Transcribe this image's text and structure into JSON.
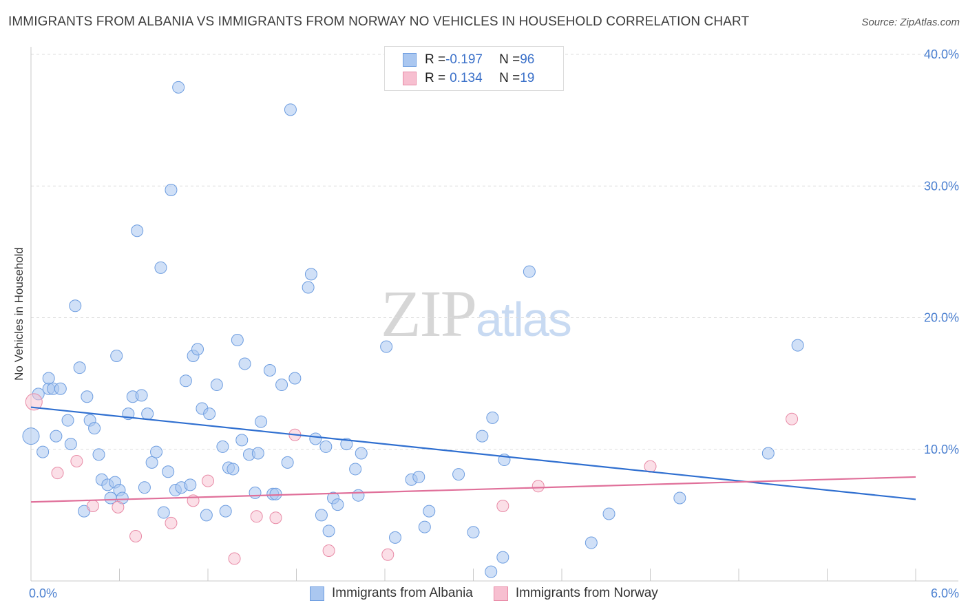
{
  "title": "IMMIGRANTS FROM ALBANIA VS IMMIGRANTS FROM NORWAY NO VEHICLES IN HOUSEHOLD CORRELATION CHART",
  "source": "Source: ZipAtlas.com",
  "watermark": {
    "part1": "ZIP",
    "part2": "atlas"
  },
  "legend": {
    "albania": {
      "r_label": "R = ",
      "r_value": "-0.197",
      "n_label": "N = ",
      "n_value": "96",
      "color": "#aac7f0",
      "border": "#6d9de0"
    },
    "norway": {
      "r_label": "R = ",
      "r_value": "0.134",
      "n_label": "N = ",
      "n_value": "19",
      "color": "#f7bfd0",
      "border": "#e88aa6"
    }
  },
  "chart_data": {
    "type": "scatter",
    "title": "IMMIGRANTS FROM ALBANIA VS IMMIGRANTS FROM NORWAY NO VEHICLES IN HOUSEHOLD CORRELATION CHART",
    "xlabel": "",
    "ylabel": "No Vehicles in Household",
    "xlim": [
      0,
      6
    ],
    "ylim": [
      0,
      40
    ],
    "x_tick_labels": [
      "0.0%",
      "6.0%"
    ],
    "y_ticks": [
      10,
      20,
      30,
      40
    ],
    "y_tick_labels": [
      "10.0%",
      "20.0%",
      "30.0%",
      "40.0%"
    ],
    "grid": true,
    "series": [
      {
        "name": "Immigrants from Albania",
        "color": "#aac7f0",
        "stroke": "#6d9de0",
        "trend": {
          "x": [
            0,
            6
          ],
          "y": [
            13.2,
            6.2
          ],
          "color": "#2f6fd0"
        },
        "points": [
          [
            0.0,
            11.0
          ],
          [
            0.05,
            14.2
          ],
          [
            0.08,
            9.8
          ],
          [
            0.12,
            14.6
          ],
          [
            0.12,
            15.4
          ],
          [
            0.15,
            14.6
          ],
          [
            0.17,
            11.0
          ],
          [
            0.2,
            14.6
          ],
          [
            0.25,
            12.2
          ],
          [
            0.27,
            10.4
          ],
          [
            0.3,
            20.9
          ],
          [
            0.33,
            16.2
          ],
          [
            0.36,
            5.3
          ],
          [
            0.38,
            14.0
          ],
          [
            0.4,
            12.2
          ],
          [
            0.43,
            11.6
          ],
          [
            0.46,
            9.6
          ],
          [
            0.48,
            7.7
          ],
          [
            0.52,
            7.3
          ],
          [
            0.54,
            6.3
          ],
          [
            0.57,
            7.5
          ],
          [
            0.58,
            17.1
          ],
          [
            0.6,
            6.9
          ],
          [
            0.62,
            6.3
          ],
          [
            0.66,
            12.7
          ],
          [
            0.69,
            14.0
          ],
          [
            0.72,
            26.6
          ],
          [
            0.75,
            14.1
          ],
          [
            0.77,
            7.1
          ],
          [
            0.79,
            12.7
          ],
          [
            0.82,
            9.0
          ],
          [
            0.85,
            9.8
          ],
          [
            0.88,
            23.8
          ],
          [
            0.9,
            5.2
          ],
          [
            0.93,
            8.3
          ],
          [
            0.95,
            29.7
          ],
          [
            0.98,
            6.9
          ],
          [
            1.0,
            37.5
          ],
          [
            1.02,
            7.1
          ],
          [
            1.05,
            15.2
          ],
          [
            1.08,
            7.3
          ],
          [
            1.1,
            17.1
          ],
          [
            1.13,
            17.6
          ],
          [
            1.16,
            13.1
          ],
          [
            1.19,
            5.0
          ],
          [
            1.21,
            12.7
          ],
          [
            1.26,
            14.9
          ],
          [
            1.3,
            10.2
          ],
          [
            1.32,
            5.3
          ],
          [
            1.34,
            8.6
          ],
          [
            1.37,
            8.5
          ],
          [
            1.4,
            18.3
          ],
          [
            1.43,
            10.7
          ],
          [
            1.45,
            16.5
          ],
          [
            1.48,
            9.6
          ],
          [
            1.52,
            6.7
          ],
          [
            1.54,
            9.7
          ],
          [
            1.56,
            12.1
          ],
          [
            1.62,
            16.0
          ],
          [
            1.64,
            6.6
          ],
          [
            1.66,
            6.6
          ],
          [
            1.7,
            14.9
          ],
          [
            1.74,
            9.0
          ],
          [
            1.76,
            35.8
          ],
          [
            1.79,
            15.4
          ],
          [
            1.88,
            22.3
          ],
          [
            1.9,
            23.3
          ],
          [
            1.93,
            10.8
          ],
          [
            1.97,
            5.0
          ],
          [
            2.0,
            10.2
          ],
          [
            2.02,
            3.8
          ],
          [
            2.05,
            6.3
          ],
          [
            2.08,
            5.8
          ],
          [
            2.14,
            10.4
          ],
          [
            2.2,
            8.5
          ],
          [
            2.22,
            6.5
          ],
          [
            2.24,
            9.7
          ],
          [
            2.41,
            17.8
          ],
          [
            2.47,
            3.3
          ],
          [
            2.58,
            7.7
          ],
          [
            2.63,
            7.9
          ],
          [
            2.67,
            4.1
          ],
          [
            2.7,
            5.3
          ],
          [
            2.9,
            8.1
          ],
          [
            3.0,
            3.7
          ],
          [
            3.06,
            11.0
          ],
          [
            3.12,
            0.7
          ],
          [
            3.13,
            12.4
          ],
          [
            3.2,
            1.8
          ],
          [
            3.21,
            9.2
          ],
          [
            3.38,
            23.5
          ],
          [
            3.8,
            2.9
          ],
          [
            3.92,
            5.1
          ],
          [
            4.4,
            6.3
          ],
          [
            5.0,
            9.7
          ],
          [
            5.2,
            17.9
          ]
        ]
      },
      {
        "name": "Immigrants from Norway",
        "color": "#f7bfd0",
        "stroke": "#e88aa6",
        "trend": {
          "x": [
            0,
            6
          ],
          "y": [
            6.0,
            7.9
          ],
          "color": "#e0709a"
        },
        "points": [
          [
            0.02,
            13.6
          ],
          [
            0.18,
            8.2
          ],
          [
            0.31,
            9.1
          ],
          [
            0.42,
            5.7
          ],
          [
            0.59,
            5.6
          ],
          [
            0.71,
            3.4
          ],
          [
            0.95,
            4.4
          ],
          [
            1.1,
            6.1
          ],
          [
            1.2,
            7.6
          ],
          [
            1.38,
            1.7
          ],
          [
            1.53,
            4.9
          ],
          [
            1.66,
            4.8
          ],
          [
            1.79,
            11.1
          ],
          [
            2.02,
            2.3
          ],
          [
            2.42,
            2.0
          ],
          [
            3.2,
            5.7
          ],
          [
            3.44,
            7.2
          ],
          [
            4.2,
            8.7
          ],
          [
            5.16,
            12.3
          ]
        ]
      }
    ]
  },
  "bottom_legend": {
    "albania": "Immigrants from Albania",
    "norway": "Immigrants from Norway"
  }
}
